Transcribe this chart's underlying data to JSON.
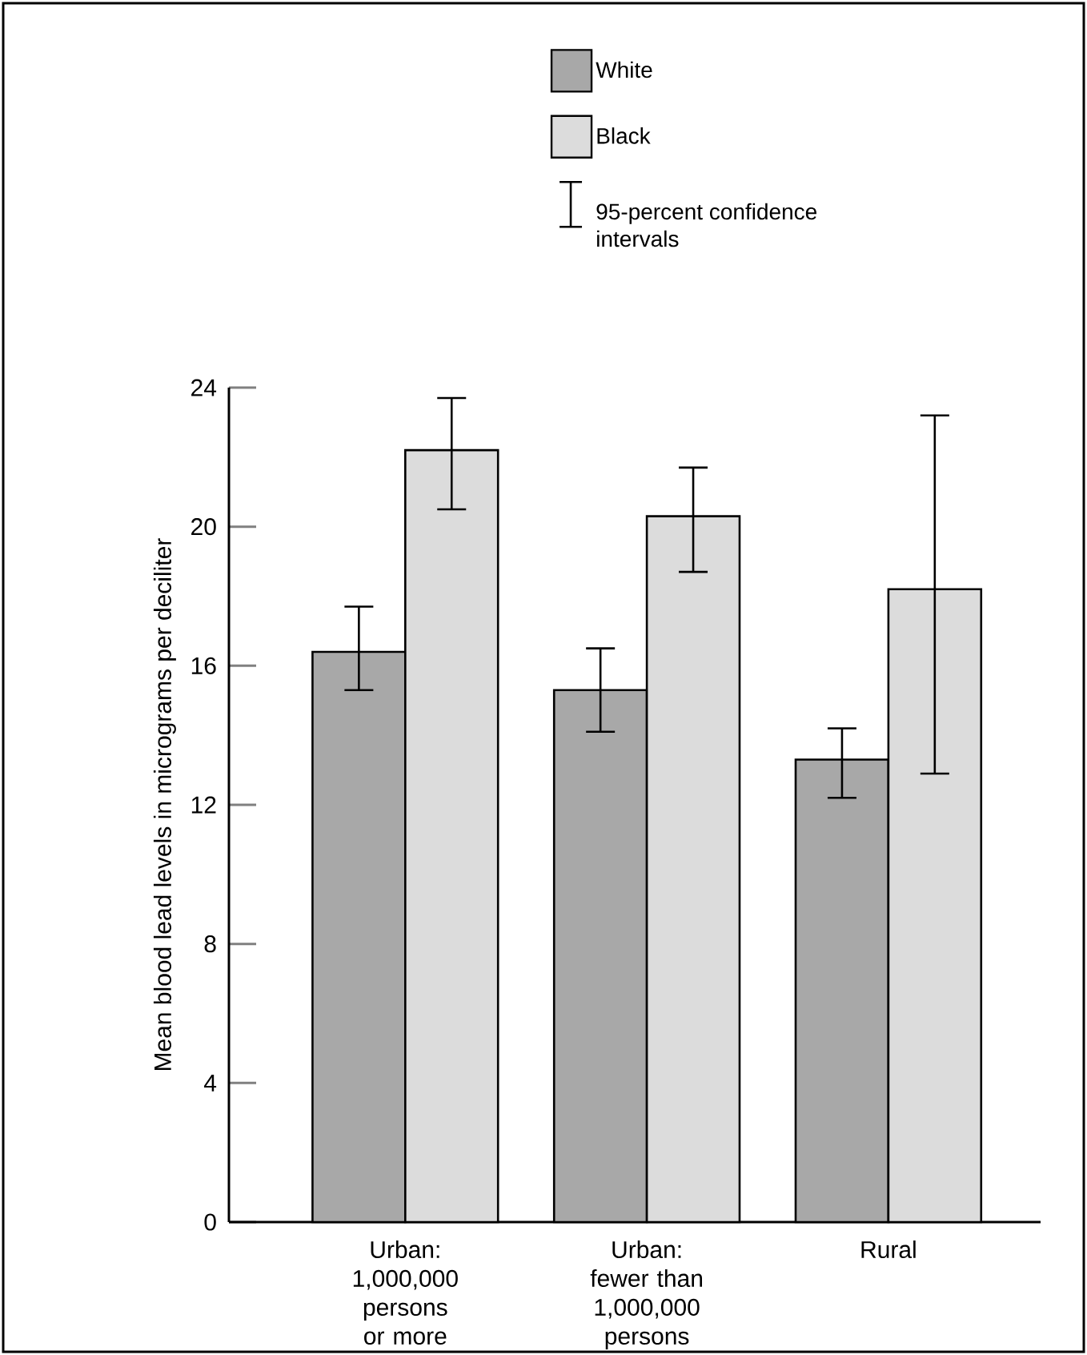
{
  "chart_data": {
    "type": "bar",
    "ylabel": "Mean blood lead levels in micrograms per deciliter",
    "categories": [
      "Urban: 1,000,000 persons or more",
      "Urban: fewer than 1,000,000 persons",
      "Rural"
    ],
    "series": [
      {
        "name": "White",
        "color": "#a8a8a8",
        "values": [
          16.4,
          15.3,
          13.3
        ],
        "errors": [
          [
            15.3,
            17.7
          ],
          [
            14.1,
            16.5
          ],
          [
            12.2,
            14.2
          ]
        ]
      },
      {
        "name": "Black",
        "color": "#dcdcdc",
        "values": [
          22.2,
          20.3,
          18.2
        ],
        "errors": [
          [
            20.5,
            23.7
          ],
          [
            18.7,
            21.7
          ],
          [
            12.9,
            23.2
          ]
        ]
      }
    ],
    "annotations": [
      "95-percent confidence intervals"
    ],
    "ylim": [
      0,
      24
    ],
    "yticks": [
      0,
      4,
      8,
      12,
      16,
      20,
      24
    ],
    "legend": "top",
    "grid": false
  }
}
